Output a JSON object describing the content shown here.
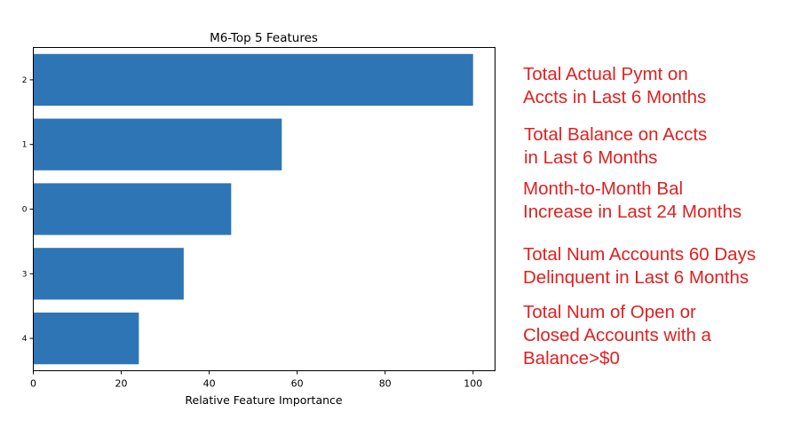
{
  "chart_data": {
    "type": "bar",
    "orientation": "horizontal",
    "title": "M6-Top 5 Features",
    "xlabel": "Relative Feature Importance",
    "ylabel": "",
    "categories": [
      "2",
      "1",
      "0",
      "3",
      "4"
    ],
    "values": [
      100,
      56.5,
      45,
      34.2,
      24
    ],
    "xlim": [
      0,
      105
    ],
    "xticks": [
      "0",
      "20",
      "40",
      "60",
      "80",
      "100"
    ],
    "xtick_values": [
      0,
      20,
      40,
      60,
      80,
      100
    ],
    "bar_color": "#2e75b6",
    "grid": false,
    "legend": "none"
  },
  "annotations": [
    {
      "lines": [
        "Total Actual Pymt on",
        "Accts in Last 6 Months"
      ]
    },
    {
      "lines": [
        "Total Balance on Accts",
        "in Last 6 Months"
      ]
    },
    {
      "lines": [
        "Month-to-Month Bal",
        "Increase in Last 24 Months"
      ]
    },
    {
      "lines": [
        "Total Num Accounts 60 Days",
        "Delinquent in Last 6 Months"
      ]
    },
    {
      "lines": [
        "Total Num of Open or",
        "Closed Accounts with a",
        "Balance>$0"
      ]
    }
  ],
  "annotation_color": "#e02020"
}
